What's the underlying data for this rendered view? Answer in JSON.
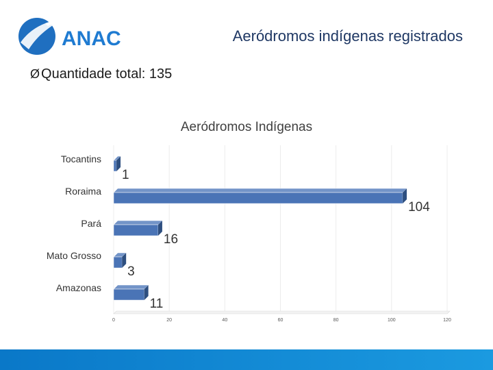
{
  "header": {
    "logo_text": "ANAC",
    "title": "Aeródromos indígenas registrados"
  },
  "bullet": {
    "marker": "Ø",
    "text": "Quantidade total: 135"
  },
  "colors": {
    "title": "#1f3864",
    "bar_front": "#4a74b6",
    "bar_side": "#2e4f80",
    "bar_top": "#7394c8",
    "logo_blue": "#1f7bd1",
    "bottom_bar": "#0a78c8"
  },
  "chart_data": {
    "type": "bar",
    "orientation": "horizontal",
    "title": "Aeródromos Indígenas",
    "categories": [
      "Tocantins",
      "Roraima",
      "Pará",
      "Mato Grosso",
      "Amazonas"
    ],
    "values": [
      1,
      104,
      16,
      3,
      11
    ],
    "xlim": [
      0,
      120
    ],
    "xticks": [
      0,
      20,
      40,
      60,
      80,
      100,
      120
    ],
    "grid": true,
    "legend": "none"
  }
}
